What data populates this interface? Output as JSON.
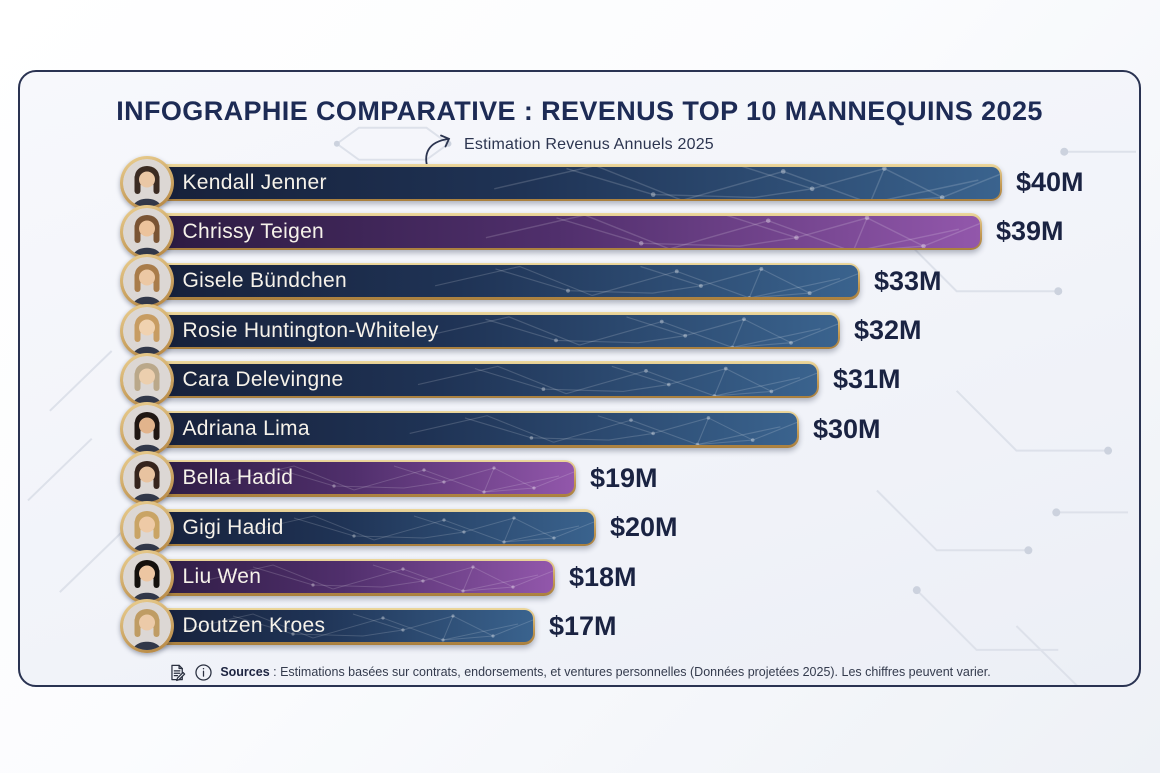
{
  "header": {
    "title": "INFOGRAPHIE COMPARATIVE : REVENUS TOP 10 MANNEQUINS 2025",
    "subtitle": "Estimation Revenus Annuels 2025"
  },
  "chart_data": {
    "type": "bar",
    "orientation": "horizontal",
    "title": "INFOGRAPHIE COMPARATIVE : REVENUS TOP 10 MANNEQUINS 2025",
    "subtitle": "Estimation Revenus Annuels 2025",
    "value_unit": "$M",
    "xlim": [
      0,
      40
    ],
    "grid": false,
    "legend": false,
    "categories": [
      "Kendall Jenner",
      "Chrissy Teigen",
      "Gisele Bündchen",
      "Rosie Huntington-Whiteley",
      "Cara Delevingne",
      "Adriana Lima",
      "Bella Hadid",
      "Gigi Hadid",
      "Liu Wen",
      "Doutzen Kroes"
    ],
    "values": [
      40,
      39,
      33,
      32,
      31,
      30,
      19,
      20,
      18,
      17
    ],
    "value_labels": [
      "$40M",
      "$39M",
      "$33M",
      "$32M",
      "$31M",
      "$30M",
      "$19M",
      "$20M",
      "$18M",
      "$17M"
    ],
    "bar_themes": [
      "navy",
      "purple",
      "navy",
      "navy",
      "navy",
      "navy",
      "purple",
      "navy",
      "purple",
      "navy"
    ]
  },
  "rows": [
    {
      "name": "Kendall Jenner",
      "value_m": 40,
      "value_label": "$40M",
      "theme": "navy",
      "hair_color": "#3b2b22",
      "skin_color": "#eac7a5"
    },
    {
      "name": "Chrissy Teigen",
      "value_m": 39,
      "value_label": "$39M",
      "theme": "purple",
      "hair_color": "#7a5434",
      "skin_color": "#ecc39c"
    },
    {
      "name": "Gisele Bündchen",
      "value_m": 33,
      "value_label": "$33M",
      "theme": "navy",
      "hair_color": "#a97c4a",
      "skin_color": "#ecc8a4"
    },
    {
      "name": "Rosie Huntington-Whiteley",
      "value_m": 32,
      "value_label": "$32M",
      "theme": "navy",
      "hair_color": "#c79c62",
      "skin_color": "#f0d2b0"
    },
    {
      "name": "Cara Delevingne",
      "value_m": 31,
      "value_label": "$31M",
      "theme": "navy",
      "hair_color": "#baa88a",
      "skin_color": "#eccfae"
    },
    {
      "name": "Adriana Lima",
      "value_m": 30,
      "value_label": "$30M",
      "theme": "navy",
      "hair_color": "#201713",
      "skin_color": "#e2b48c"
    },
    {
      "name": "Bella Hadid",
      "value_m": 19,
      "value_label": "$19M",
      "theme": "purple",
      "hair_color": "#35241d",
      "skin_color": "#e8c3a0"
    },
    {
      "name": "Gigi Hadid",
      "value_m": 20,
      "value_label": "$20M",
      "theme": "navy",
      "hair_color": "#c9a465",
      "skin_color": "#eecaa6"
    },
    {
      "name": "Liu Wen",
      "value_m": 18,
      "value_label": "$18M",
      "theme": "purple",
      "hair_color": "#14100d",
      "skin_color": "#edc6a2"
    },
    {
      "name": "Doutzen Kroes",
      "value_m": 17,
      "value_label": "$17M",
      "theme": "navy",
      "hair_color": "#bf9c64",
      "skin_color": "#eccaa8"
    }
  ],
  "footer": {
    "sources_label": "Sources",
    "sources_text": " : Estimations basées sur contrats, endorsements, et ventures personnelles (Données projetées 2025). Les chiffres peuvent varier.",
    "icons": [
      "document-pencil-icon",
      "info-icon"
    ]
  },
  "colors": {
    "title_navy": "#1d2b55",
    "value_navy": "#1a2342",
    "gold_border": "#c59b55",
    "bar_navy_dark": "#161f38",
    "bar_navy_light": "#3a638e",
    "bar_purple_dark": "#2a1a3f",
    "bar_purple_light": "#9257ab",
    "card_border": "#2a3352",
    "card_bg": "#f2f4f9"
  }
}
